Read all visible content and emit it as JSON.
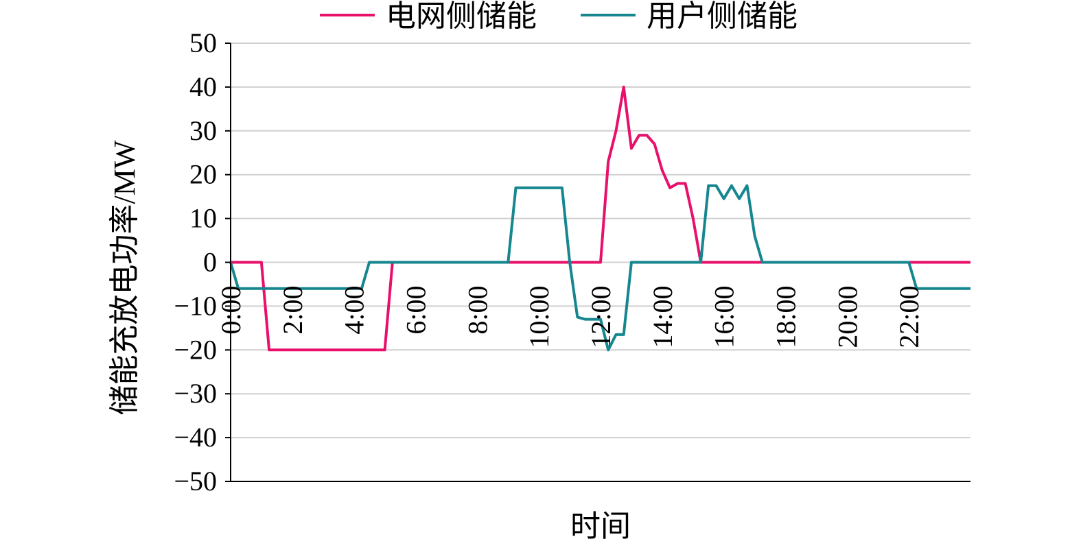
{
  "chart_data": {
    "type": "line",
    "xlabel": "时间",
    "ylabel": "储能充放电功率/MW",
    "ylim": [
      -50,
      50
    ],
    "yticks": [
      50,
      40,
      30,
      20,
      10,
      0,
      -10,
      -20,
      -30,
      -40,
      -50
    ],
    "ytick_labels": [
      "50",
      "40",
      "30",
      "20",
      "10",
      "0",
      "−10",
      "−20",
      "−30",
      "−40",
      "−50"
    ],
    "xlim": [
      0,
      24
    ],
    "xticks": [
      0,
      2,
      4,
      6,
      8,
      10,
      12,
      14,
      16,
      18,
      20,
      22
    ],
    "xtick_labels": [
      "0:00",
      "2:00",
      "4:00",
      "6:00",
      "8:00",
      "10:00",
      "12:00",
      "14:00",
      "16:00",
      "18:00",
      "20:00",
      "22:00"
    ],
    "grid": true,
    "legend": "top",
    "series": [
      {
        "name": "电网侧储能",
        "color": "#e8106a",
        "x": [
          0,
          1,
          1.25,
          5,
          5.25,
          12,
          12.25,
          12.5,
          12.75,
          13,
          13.25,
          13.5,
          13.75,
          14,
          14.25,
          14.5,
          14.75,
          15,
          15.25,
          24
        ],
        "y": [
          0,
          0,
          -20,
          -20,
          0,
          0,
          23,
          30,
          40,
          26,
          29,
          29,
          27,
          21,
          17,
          18,
          18,
          10,
          0,
          0
        ]
      },
      {
        "name": "用户侧储能",
        "color": "#16868f",
        "x": [
          0,
          0.25,
          4.25,
          4.5,
          9,
          9.25,
          10.75,
          11,
          11.25,
          11.5,
          12,
          12.25,
          12.5,
          12.75,
          13,
          15.25,
          15.5,
          15.75,
          16,
          16.25,
          16.5,
          16.75,
          17,
          17.25,
          22,
          22.25,
          23,
          24
        ],
        "y": [
          0,
          -6,
          -6,
          0,
          0,
          17,
          17,
          0,
          -12.5,
          -13,
          -13,
          -20,
          -16.5,
          -16.5,
          0,
          0,
          17.5,
          17.5,
          14.5,
          17.5,
          14.5,
          17.5,
          6,
          0,
          0,
          -6,
          -6,
          -6
        ]
      }
    ]
  }
}
